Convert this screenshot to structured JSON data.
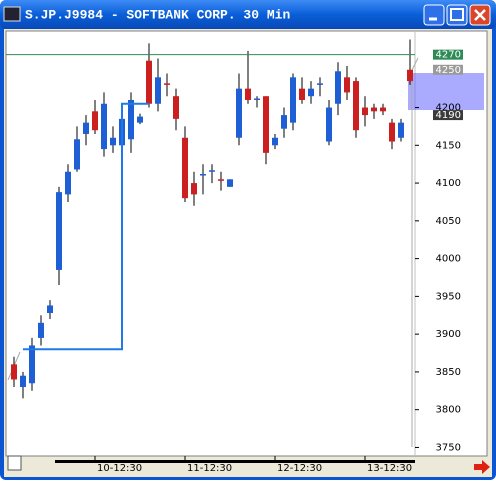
{
  "window": {
    "title": "S.JP.J9984 - SOFTBANK CORP. 30 Min"
  },
  "chart_data": {
    "type": "candlestick",
    "categories": [
      null,
      null,
      null,
      null,
      null,
      null,
      null,
      null,
      null,
      "10-12:30",
      null,
      null,
      null,
      null,
      null,
      null,
      null,
      null,
      null,
      "11-12:30",
      null,
      null,
      null,
      null,
      null,
      null,
      null,
      null,
      null,
      "12-12:30",
      null,
      null,
      null,
      null,
      null,
      null,
      null,
      null,
      null,
      "13-12:30",
      null,
      null,
      null,
      null,
      null
    ],
    "open": [
      3860,
      3830,
      3835,
      3895,
      3928,
      3985,
      4085,
      4118,
      4165,
      4195,
      4145,
      4150,
      4150,
      4158,
      4180,
      4262,
      4205,
      4232,
      4215,
      4160,
      4100,
      4110,
      4115,
      4105,
      4095,
      4160,
      4225,
      4210,
      4215,
      4150,
      4172,
      4180,
      4225,
      4215,
      4230,
      4155,
      4205,
      4240,
      4235,
      4200,
      4200,
      4200,
      4180,
      4160,
      4250
    ],
    "high": [
      3870,
      3850,
      3895,
      3925,
      3945,
      4095,
      4125,
      4175,
      4190,
      4210,
      4220,
      4175,
      4190,
      4220,
      4192,
      4285,
      4265,
      4245,
      4225,
      4175,
      4115,
      4125,
      4125,
      4115,
      4105,
      4245,
      4275,
      4215,
      4215,
      4165,
      4200,
      4245,
      4240,
      4235,
      4240,
      4210,
      4260,
      4255,
      4240,
      4215,
      4205,
      4205,
      4185,
      4185,
      4290
    ],
    "low": [
      3830,
      3815,
      3825,
      3885,
      3920,
      3965,
      4075,
      4115,
      4150,
      4165,
      4135,
      4140,
      4130,
      4140,
      4178,
      4200,
      4195,
      4215,
      4170,
      4075,
      4070,
      4085,
      4100,
      4090,
      4095,
      4150,
      4205,
      4200,
      4125,
      4145,
      4160,
      4170,
      4205,
      4205,
      4215,
      4150,
      4190,
      4210,
      4160,
      4175,
      4185,
      4190,
      4145,
      4155,
      4230
    ],
    "close": [
      3840,
      3845,
      3885,
      3915,
      3938,
      4088,
      4115,
      4158,
      4180,
      4170,
      4205,
      4160,
      4185,
      4210,
      4188,
      4205,
      4240,
      4230,
      4185,
      4080,
      4085,
      4112,
      4117,
      4103,
      4105,
      4225,
      4210,
      4212,
      4140,
      4160,
      4190,
      4240,
      4210,
      4225,
      4232,
      4200,
      4248,
      4220,
      4170,
      4190,
      4195,
      4195,
      4155,
      4180,
      4235
    ],
    "up_color": "#1f5fd6",
    "down_color": "#cc1f1f",
    "ylim": [
      3740,
      4300
    ],
    "yticks": [
      3750,
      3800,
      3850,
      3900,
      3950,
      4000,
      4050,
      4100,
      4150,
      4200
    ],
    "price_markers": [
      {
        "value": 4270,
        "color": "#2e8b57"
      },
      {
        "value": 4250,
        "color": "#9a9a9a"
      },
      {
        "value": 4190,
        "color": "#3a3a3a"
      }
    ],
    "step_line": {
      "color": "#1e7ae6",
      "values": [
        null,
        3880,
        3880,
        3880,
        3880,
        3880,
        3880,
        3880,
        3880,
        3880,
        3880,
        3880,
        4205,
        4205,
        4205,
        4205,
        null,
        null,
        null,
        null,
        null,
        null,
        null,
        null,
        null,
        null,
        null,
        null,
        null,
        null,
        null,
        null,
        null,
        null,
        null,
        null,
        null,
        null,
        null,
        null,
        null,
        null,
        null,
        null,
        null
      ]
    }
  }
}
